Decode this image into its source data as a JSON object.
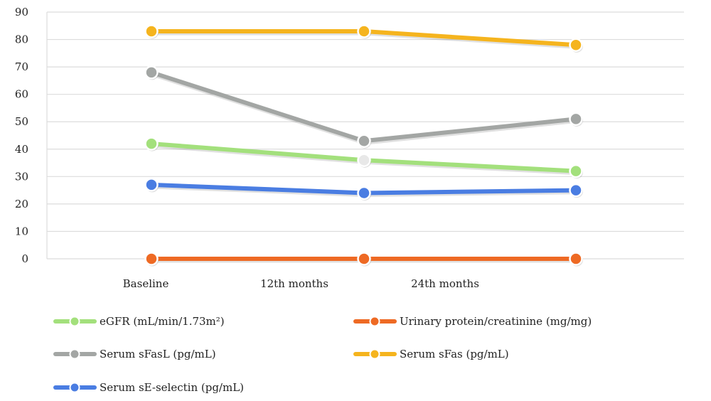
{
  "chart_data": {
    "type": "line",
    "categories": [
      "Baseline",
      "12th months",
      "24th months"
    ],
    "ylim": [
      0,
      90
    ],
    "yticks": [
      0,
      10,
      20,
      30,
      40,
      50,
      60,
      70,
      80,
      90
    ],
    "grid": true,
    "legend_position": "bottom",
    "series": [
      {
        "name": "eGFR (mL/min/1.73m²)",
        "color": "#a3e07c",
        "values": [
          42,
          36,
          32
        ]
      },
      {
        "name": "Urinary protein/creatinine (mg/mg)",
        "color": "#ee6a24",
        "values": [
          0,
          0,
          0
        ]
      },
      {
        "name": "Serum sFasL (pg/mL)",
        "color": "#a3a6a4",
        "values": [
          68,
          43,
          51
        ]
      },
      {
        "name": "Serum sFas (pg/mL)",
        "color": "#f5b41e",
        "values": [
          83,
          83,
          78
        ]
      },
      {
        "name": "Serum sE-selectin (pg/mL)",
        "color": "#4a7de2",
        "values": [
          27,
          24,
          25
        ]
      }
    ]
  }
}
